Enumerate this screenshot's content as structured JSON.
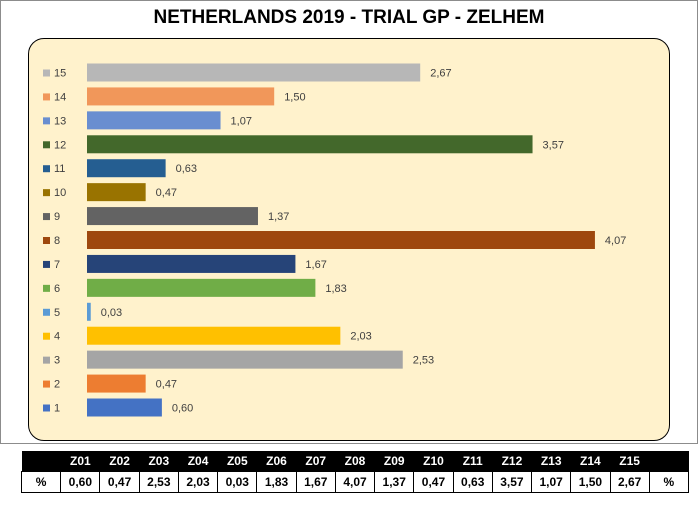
{
  "title": "NETHERLANDS 2019 - TRIAL GP - ZELHEM",
  "chart_data": {
    "type": "bar",
    "orientation": "horizontal",
    "title": "NETHERLANDS 2019 - TRIAL GP - ZELHEM",
    "categories": [
      "1",
      "2",
      "3",
      "4",
      "5",
      "6",
      "7",
      "8",
      "9",
      "10",
      "11",
      "12",
      "13",
      "14",
      "15"
    ],
    "values": [
      0.6,
      0.47,
      2.53,
      2.03,
      0.03,
      1.83,
      1.67,
      4.07,
      1.37,
      0.47,
      0.63,
      3.57,
      1.07,
      1.5,
      2.67
    ],
    "value_labels": [
      "0,60",
      "0,47",
      "2,53",
      "2,03",
      "0,03",
      "1,83",
      "1,67",
      "4,07",
      "1,37",
      "0,47",
      "0,63",
      "3,57",
      "1,07",
      "1,50",
      "2,67"
    ],
    "colors": [
      "#4472c4",
      "#ed7d31",
      "#a5a5a5",
      "#ffc000",
      "#5b9bd5",
      "#70ad47",
      "#264478",
      "#9e480e",
      "#636363",
      "#997300",
      "#255e91",
      "#43682b",
      "#698ed0",
      "#f1975a",
      "#b7b7b7"
    ],
    "xlim": [
      0,
      4.2
    ],
    "legend": "left",
    "grid": false,
    "panel_background": "#fff2cc"
  },
  "table": {
    "header": [
      "",
      "Z01",
      "Z02",
      "Z03",
      "Z04",
      "Z05",
      "Z06",
      "Z07",
      "Z08",
      "Z09",
      "Z10",
      "Z11",
      "Z12",
      "Z13",
      "Z14",
      "Z15",
      ""
    ],
    "row": [
      "%",
      "0,60",
      "0,47",
      "2,53",
      "2,03",
      "0,03",
      "1,83",
      "1,67",
      "4,07",
      "1,37",
      "0,47",
      "0,63",
      "3,57",
      "1,07",
      "1,50",
      "2,67",
      "%"
    ]
  }
}
